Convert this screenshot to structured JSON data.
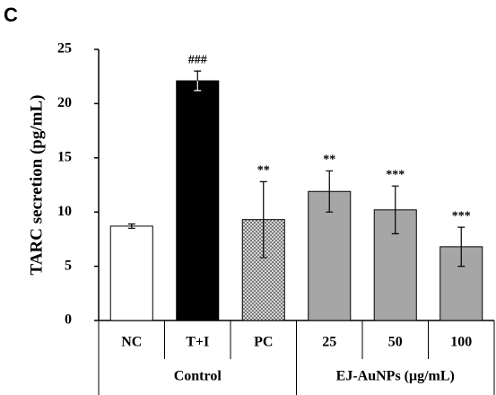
{
  "chart_data": {
    "type": "bar",
    "panel": "C",
    "ylabel": "TARC secretion (pg/mL)",
    "categories": [
      "NC",
      "T+I",
      "PC",
      "25",
      "50",
      "100"
    ],
    "values": [
      8.7,
      22.1,
      9.3,
      11.9,
      10.2,
      6.8
    ],
    "errors": [
      0.2,
      0.9,
      3.5,
      1.9,
      2.2,
      1.8
    ],
    "annotations": [
      null,
      "###",
      "**",
      "**",
      "***",
      "***"
    ],
    "colors": [
      "#ffffff",
      "#000000",
      "#d8d8d8",
      "#a6a6a6",
      "#a6a6a6",
      "#a6a6a6"
    ],
    "hatch": [
      false,
      false,
      true,
      false,
      false,
      false
    ],
    "groups": [
      {
        "label": "Control",
        "span": [
          0,
          2
        ]
      },
      {
        "label": "EJ-AuNPs (μg/mL)",
        "span": [
          3,
          5
        ]
      }
    ],
    "ylim": [
      0,
      25
    ],
    "yticks": [
      0,
      5,
      10,
      15,
      20,
      25
    ]
  }
}
